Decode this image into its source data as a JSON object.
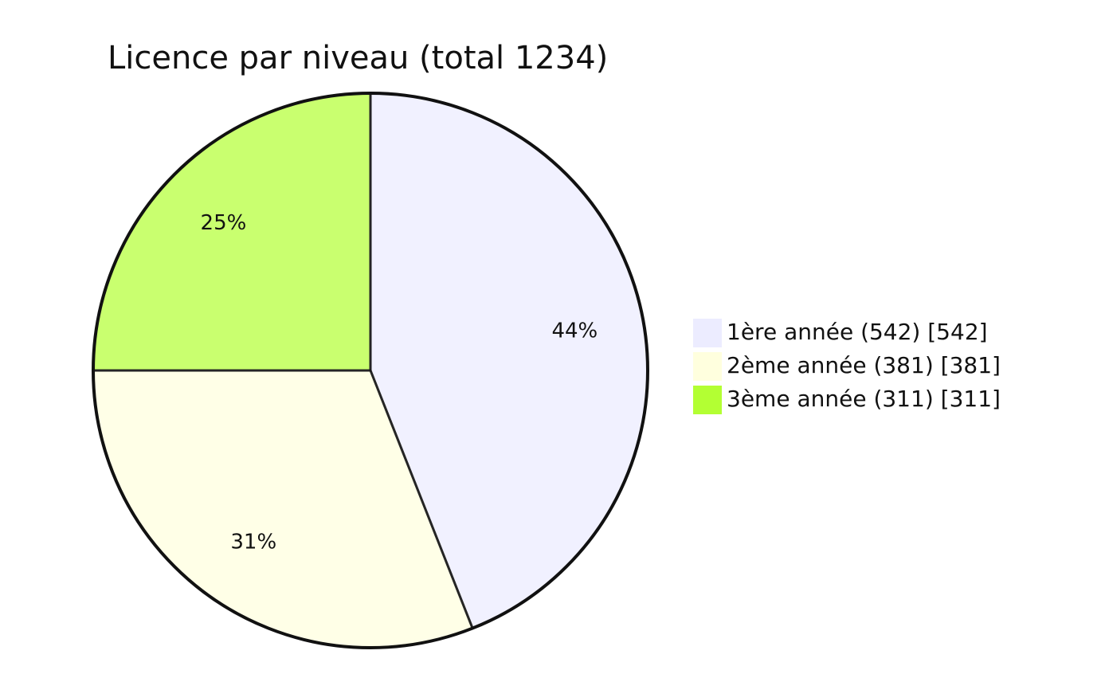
{
  "chart_data": {
    "type": "pie",
    "title": "Licence par niveau (total 1234)",
    "categories": [
      "1ère année (542) [542]",
      "2ème année (381) [381]",
      "3ème année (311) [311]"
    ],
    "values": [
      44,
      31,
      25
    ],
    "value_labels": [
      "44%",
      "31%",
      "25%"
    ],
    "colors": [
      "#ececff",
      "#ffffde",
      "#b3ff33"
    ]
  }
}
